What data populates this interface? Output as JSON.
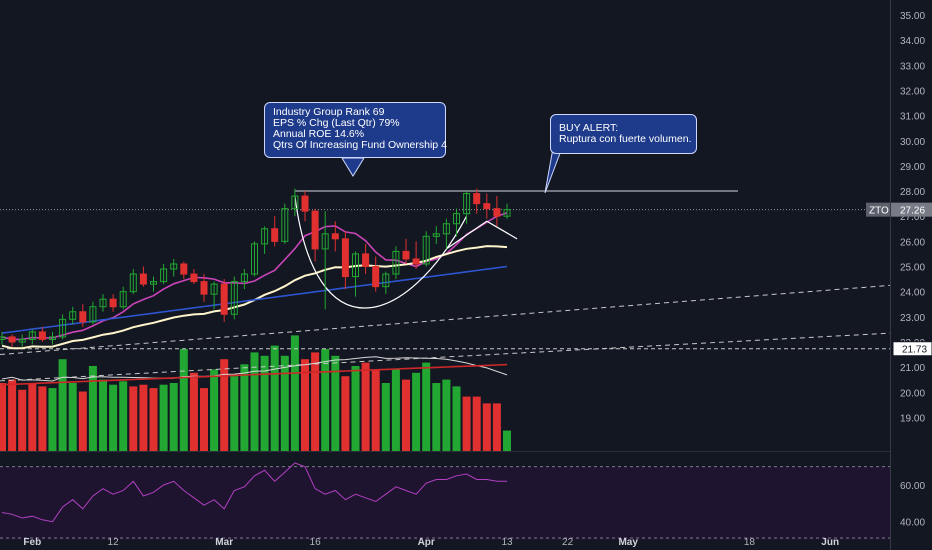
{
  "chart_data": {
    "type": "candlestick",
    "symbol": "ZTO",
    "last_price": "27.26",
    "price_axis": {
      "range": [
        17.4,
        35.4
      ],
      "ticks": [
        "35.00",
        "34.00",
        "33.00",
        "32.00",
        "31.00",
        "30.00",
        "29.00",
        "28.00",
        "27.00",
        "26.00",
        "25.00",
        "24.00",
        "23.00",
        "22.00",
        "21.00",
        "20.00",
        "19.00"
      ]
    },
    "level_label": "21.73",
    "resistance_level": 28.0,
    "rsi_axis": {
      "range": [
        30,
        78
      ],
      "ticks": [
        "60.00",
        "40.00"
      ],
      "upper": 70,
      "lower": 30
    },
    "time_axis": [
      {
        "label": "Feb",
        "bar": 3,
        "bold": true
      },
      {
        "label": "12",
        "bar": 11
      },
      {
        "label": "16",
        "bar": 31
      },
      {
        "label": "Mar",
        "bar": 22,
        "bold": true
      },
      {
        "label": "Apr",
        "bar": 42,
        "bold": true
      },
      {
        "label": "13",
        "bar": 50
      },
      {
        "label": "22",
        "bar": 56
      },
      {
        "label": "May",
        "bar": 62,
        "bold": true
      },
      {
        "label": "18",
        "bar": 74
      },
      {
        "label": "Jun",
        "bar": 82,
        "bold": true
      }
    ],
    "candles": [
      [
        22.1,
        22.4,
        21.9,
        22.2
      ],
      [
        22.2,
        22.3,
        21.8,
        22.0
      ],
      [
        22.0,
        22.3,
        21.8,
        22.1
      ],
      [
        22.1,
        22.5,
        21.9,
        22.4
      ],
      [
        22.4,
        22.6,
        22.0,
        22.1
      ],
      [
        22.1,
        22.4,
        21.9,
        22.2
      ],
      [
        22.2,
        23.1,
        22.1,
        22.9
      ],
      [
        22.9,
        23.4,
        22.7,
        23.2
      ],
      [
        23.2,
        23.5,
        22.6,
        22.8
      ],
      [
        22.8,
        23.6,
        22.7,
        23.4
      ],
      [
        23.4,
        23.9,
        23.2,
        23.7
      ],
      [
        23.7,
        23.9,
        23.2,
        23.4
      ],
      [
        23.4,
        24.2,
        23.3,
        24.0
      ],
      [
        24.0,
        24.9,
        23.9,
        24.7
      ],
      [
        24.7,
        25.0,
        24.2,
        24.3
      ],
      [
        24.3,
        24.6,
        24.0,
        24.4
      ],
      [
        24.4,
        25.1,
        24.3,
        24.9
      ],
      [
        24.9,
        25.3,
        24.6,
        25.1
      ],
      [
        25.1,
        25.2,
        24.5,
        24.7
      ],
      [
        24.7,
        24.9,
        24.3,
        24.4
      ],
      [
        24.4,
        24.7,
        23.6,
        23.9
      ],
      [
        23.9,
        24.4,
        23.3,
        24.3
      ],
      [
        24.3,
        24.5,
        22.8,
        23.1
      ],
      [
        23.1,
        24.6,
        22.9,
        24.4
      ],
      [
        24.4,
        24.9,
        24.1,
        24.7
      ],
      [
        24.7,
        26.0,
        24.6,
        25.9
      ],
      [
        25.9,
        26.6,
        25.5,
        26.5
      ],
      [
        26.5,
        27.0,
        25.8,
        26.0
      ],
      [
        26.0,
        27.5,
        25.9,
        27.3
      ],
      [
        27.3,
        28.1,
        27.0,
        27.8
      ],
      [
        27.8,
        28.0,
        26.8,
        27.2
      ],
      [
        27.2,
        27.3,
        25.2,
        25.7
      ],
      [
        25.7,
        27.2,
        23.3,
        26.3
      ],
      [
        26.3,
        26.8,
        25.6,
        26.1
      ],
      [
        26.1,
        26.4,
        24.1,
        24.6
      ],
      [
        24.6,
        25.6,
        23.8,
        25.5
      ],
      [
        25.5,
        25.9,
        24.7,
        25.0
      ],
      [
        25.0,
        25.4,
        24.0,
        24.2
      ],
      [
        24.2,
        24.8,
        23.9,
        24.7
      ],
      [
        24.7,
        25.8,
        24.5,
        25.6
      ],
      [
        25.6,
        26.1,
        25.1,
        25.3
      ],
      [
        25.3,
        26.0,
        24.9,
        25.1
      ],
      [
        25.1,
        26.4,
        25.0,
        26.2
      ],
      [
        26.2,
        26.6,
        25.9,
        26.3
      ],
      [
        26.3,
        26.9,
        25.7,
        26.7
      ],
      [
        26.7,
        27.3,
        26.2,
        27.1
      ],
      [
        27.1,
        28.0,
        26.7,
        27.9
      ],
      [
        27.9,
        28.1,
        27.1,
        27.5
      ],
      [
        27.5,
        27.9,
        26.9,
        27.3
      ],
      [
        27.3,
        27.8,
        26.6,
        27.0
      ],
      [
        27.0,
        27.5,
        26.9,
        27.26
      ]
    ],
    "volume": [
      [
        2.0,
        0
      ],
      [
        2.1,
        0
      ],
      [
        1.8,
        0
      ],
      [
        2.0,
        0
      ],
      [
        1.9,
        0
      ],
      [
        1.85,
        1
      ],
      [
        2.7,
        1
      ],
      [
        2.0,
        1
      ],
      [
        1.75,
        0
      ],
      [
        2.5,
        1
      ],
      [
        2.1,
        1
      ],
      [
        1.95,
        1
      ],
      [
        2.05,
        1
      ],
      [
        1.9,
        0
      ],
      [
        1.95,
        0
      ],
      [
        1.85,
        0
      ],
      [
        1.95,
        1
      ],
      [
        2.0,
        1
      ],
      [
        3.0,
        1
      ],
      [
        2.3,
        0
      ],
      [
        1.85,
        0
      ],
      [
        2.4,
        1
      ],
      [
        2.7,
        0
      ],
      [
        2.2,
        1
      ],
      [
        2.55,
        1
      ],
      [
        2.9,
        1
      ],
      [
        2.8,
        1
      ],
      [
        3.1,
        1
      ],
      [
        2.8,
        1
      ],
      [
        3.4,
        1
      ],
      [
        2.7,
        0
      ],
      [
        2.9,
        0
      ],
      [
        3.0,
        1
      ],
      [
        2.8,
        1
      ],
      [
        2.2,
        0
      ],
      [
        2.5,
        1
      ],
      [
        2.6,
        0
      ],
      [
        2.4,
        0
      ],
      [
        2.0,
        1
      ],
      [
        2.4,
        1
      ],
      [
        2.1,
        0
      ],
      [
        2.3,
        1
      ],
      [
        2.6,
        1
      ],
      [
        2.0,
        1
      ],
      [
        2.1,
        1
      ],
      [
        1.9,
        1
      ],
      [
        1.6,
        0
      ],
      [
        1.6,
        0
      ],
      [
        1.4,
        0
      ],
      [
        1.4,
        0
      ],
      [
        0.6,
        1
      ]
    ],
    "rsi": [
      45,
      44,
      42,
      43,
      41,
      40,
      48,
      52,
      47,
      54,
      58,
      55,
      57,
      62,
      54,
      56,
      60,
      62,
      57,
      53,
      49,
      52,
      47,
      57,
      59,
      65,
      68,
      62,
      67,
      72,
      70,
      58,
      55,
      57,
      52,
      55,
      53,
      51,
      55,
      59,
      57,
      55,
      61,
      63,
      63,
      65,
      66,
      63,
      63,
      62,
      62
    ],
    "annotations": [
      {
        "name": "info-callout",
        "lines": [
          "Industry Group Rank 69",
          "EPS % Chg (Last Qtr) 79%",
          "Annual ROE 14.6%",
          "Qtrs Of Increasing Fund Ownership 4"
        ]
      },
      {
        "name": "buy-alert-callout",
        "lines": [
          "BUY ALERT:",
          "Ruptura con fuerte volumen."
        ]
      }
    ],
    "colors": {
      "background": "#131722",
      "up": "#22a832",
      "down": "#e03030",
      "ma_pink": "#c944b8",
      "ma_blue": "#2d55d0",
      "ma_cream": "#fff5cc",
      "ma_red": "#d02828",
      "rsi": "#b040c0",
      "rsi_band": "#1f1430"
    }
  }
}
